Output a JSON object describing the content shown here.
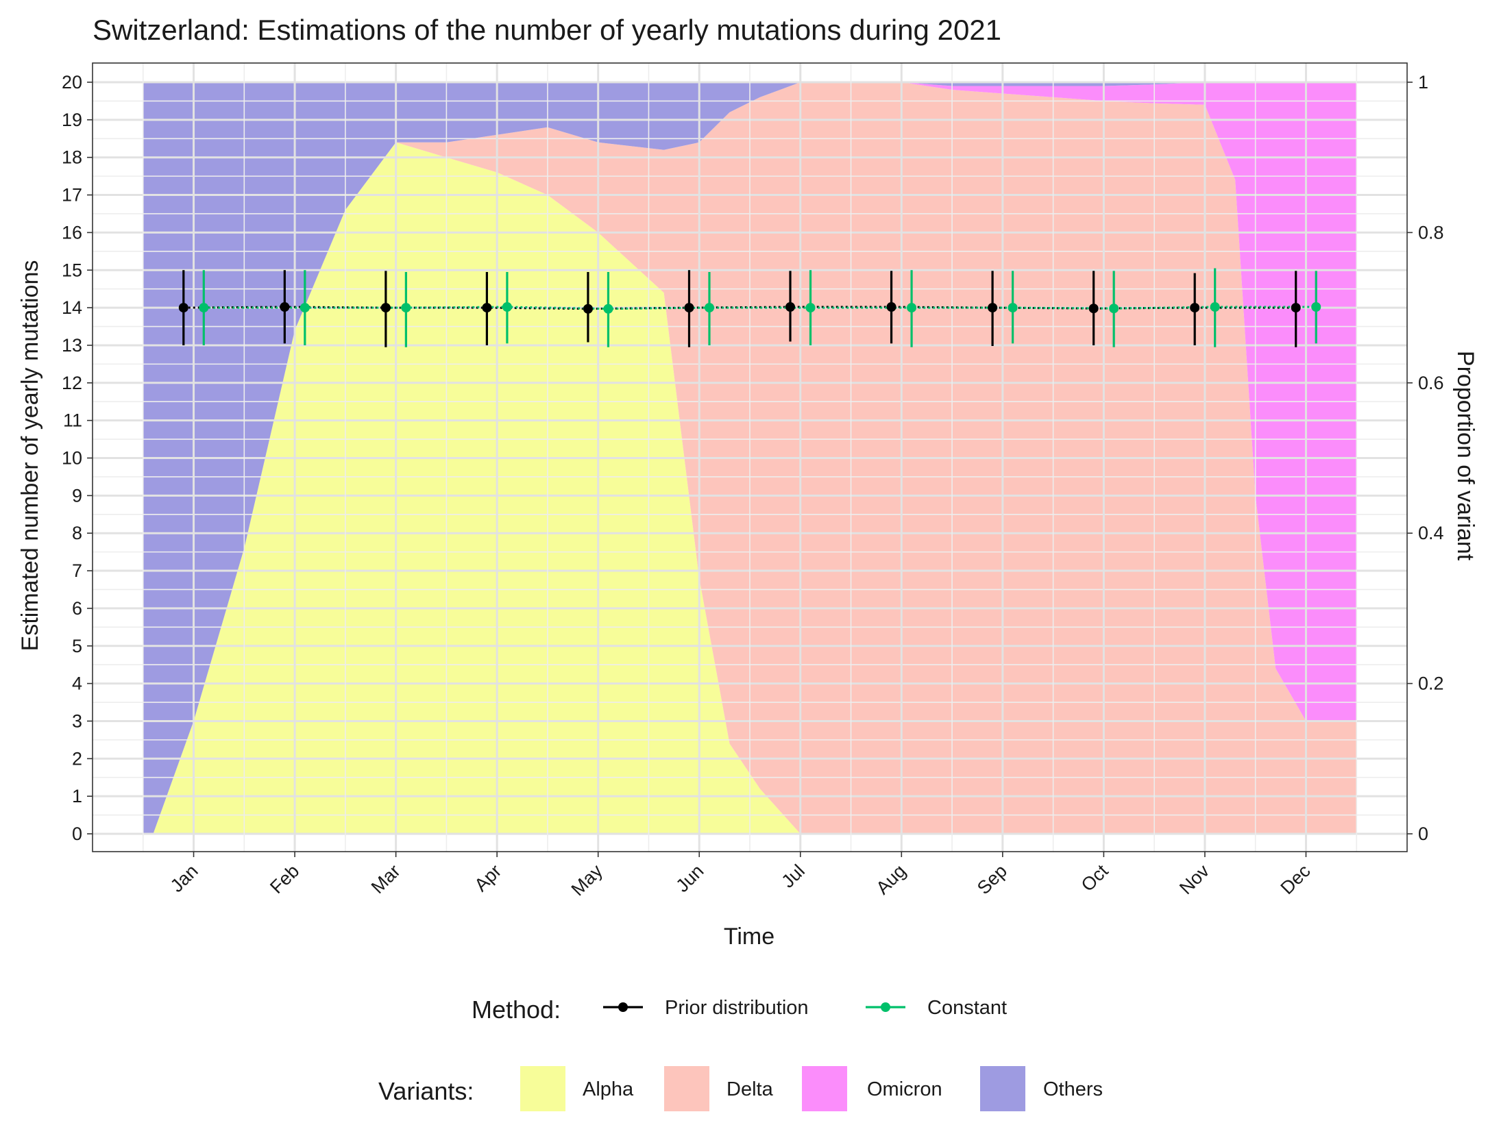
{
  "chart_data": {
    "type": "line",
    "title": "Switzerland: Estimations of the number of yearly mutations during 2021",
    "xlabel": "Time",
    "ylabel": "Estimated number of yearly mutations",
    "y2label": "Proportion of variant",
    "categories": [
      "Jan",
      "Feb",
      "Mar",
      "Apr",
      "May",
      "Jun",
      "Jul",
      "Aug",
      "Sep",
      "Oct",
      "Nov",
      "Dec"
    ],
    "ylim": [
      0,
      20
    ],
    "yticks": [
      "0",
      "1",
      "2",
      "3",
      "4",
      "5",
      "6",
      "7",
      "8",
      "9",
      "10",
      "11",
      "12",
      "13",
      "14",
      "15",
      "16",
      "17",
      "18",
      "19",
      "20"
    ],
    "y2lim": [
      0,
      1
    ],
    "y2ticks": [
      "0",
      "0.2",
      "0.4",
      "0.6",
      "0.8",
      "1"
    ],
    "grid": true,
    "series": [
      {
        "name": "Prior distribution",
        "color": "#000000",
        "values": [
          14.0,
          14.02,
          14.0,
          14.0,
          13.97,
          14.0,
          14.02,
          14.02,
          14.0,
          13.98,
          14.0,
          14.0
        ],
        "lower": [
          13.0,
          13.05,
          12.95,
          13.0,
          13.08,
          12.95,
          13.1,
          13.05,
          12.98,
          13.0,
          13.0,
          12.95
        ],
        "upper": [
          15.0,
          15.0,
          14.98,
          14.95,
          14.95,
          15.0,
          14.98,
          14.98,
          14.98,
          14.98,
          14.92,
          14.98
        ]
      },
      {
        "name": "Constant",
        "color": "#00c06a",
        "values": [
          14.0,
          14.0,
          14.0,
          14.02,
          13.97,
          14.0,
          14.0,
          14.0,
          14.0,
          13.98,
          14.02,
          14.02
        ],
        "lower": [
          13.0,
          13.0,
          12.95,
          13.05,
          12.95,
          13.0,
          13.0,
          12.95,
          13.05,
          12.95,
          12.95,
          13.05
        ],
        "upper": [
          15.0,
          15.0,
          14.95,
          14.95,
          14.95,
          14.95,
          15.0,
          15.0,
          14.98,
          14.98,
          15.05,
          14.98
        ]
      }
    ],
    "variant_areas": {
      "x": [
        0.5,
        0.6,
        1.0,
        1.5,
        2.0,
        2.5,
        3.0,
        3.5,
        4.0,
        4.5,
        5.0,
        5.65,
        6.0,
        6.3,
        6.6,
        7.0,
        7.5,
        8.0,
        8.5,
        9.0,
        9.5,
        10.0,
        10.5,
        11.0,
        11.3,
        11.5,
        11.7,
        12.0,
        12.5
      ],
      "layers": [
        {
          "name": "Alpha",
          "color": "#f7fd99",
          "proportion": [
            0.0,
            0.0,
            0.15,
            0.38,
            0.67,
            0.83,
            0.92,
            0.9,
            0.88,
            0.85,
            0.8,
            0.72,
            0.34,
            0.12,
            0.06,
            0.0,
            0.0,
            0.0,
            0.0,
            0.0,
            0.0,
            0.0,
            0.0,
            0.0,
            0.0,
            0.0,
            0.0,
            0.0,
            0.0
          ]
        },
        {
          "name": "Delta",
          "color": "#fdc5bc",
          "proportion": [
            0.0,
            0.0,
            0.0,
            0.0,
            0.0,
            0.0,
            0.0,
            0.02,
            0.05,
            0.09,
            0.12,
            0.19,
            0.58,
            0.84,
            0.92,
            1.0,
            1.0,
            1.0,
            0.99,
            0.985,
            0.98,
            0.975,
            0.972,
            0.97,
            0.87,
            0.45,
            0.22,
            0.15,
            0.15
          ]
        },
        {
          "name": "Omicron",
          "color": "#fb8dfb",
          "proportion": [
            0.0,
            0.0,
            0.0,
            0.0,
            0.0,
            0.0,
            0.0,
            0.0,
            0.0,
            0.0,
            0.0,
            0.0,
            0.0,
            0.0,
            0.0,
            0.0,
            0.0,
            0.0,
            0.005,
            0.01,
            0.015,
            0.02,
            0.025,
            0.03,
            0.13,
            0.55,
            0.78,
            0.85,
            0.85
          ]
        },
        {
          "name": "Others",
          "color": "#9e9be1",
          "proportion": [
            1.0,
            1.0,
            0.85,
            0.62,
            0.33,
            0.17,
            0.08,
            0.08,
            0.07,
            0.06,
            0.08,
            0.09,
            0.08,
            0.04,
            0.02,
            0.0,
            0.0,
            0.0,
            0.005,
            0.005,
            0.005,
            0.005,
            0.003,
            0.0,
            0.0,
            0.0,
            0.0,
            0.0,
            0.0
          ]
        }
      ]
    },
    "legend": {
      "method_title": "Method:",
      "method_items": [
        "Prior distribution",
        "Constant"
      ],
      "variants_title": "Variants:",
      "variant_items": [
        "Alpha",
        "Delta",
        "Omicron",
        "Others"
      ],
      "placement": "bottom"
    }
  }
}
